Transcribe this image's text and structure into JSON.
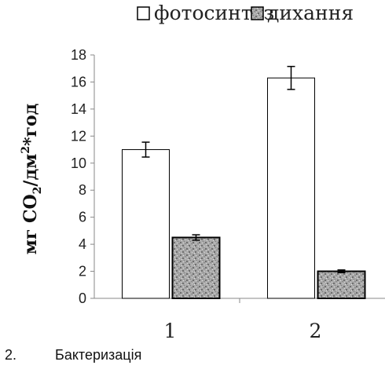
{
  "chart_data": {
    "type": "bar",
    "categories": [
      "1",
      "2"
    ],
    "series": [
      {
        "name": "фотосинтез",
        "values": [
          11.0,
          16.3
        ],
        "errors": [
          0.55,
          0.85
        ],
        "fill": "#ffffff"
      },
      {
        "name": "дихання",
        "values": [
          4.5,
          2.0
        ],
        "errors": [
          0.2,
          0.1
        ],
        "fill": "#a8a8a8"
      }
    ],
    "ylim": [
      0,
      18
    ],
    "yticks": [
      "0",
      "2",
      "4",
      "6",
      "8",
      "10",
      "12",
      "14",
      "16",
      "18"
    ],
    "ylabel": {
      "main": "мг CO",
      "sub": "2",
      "mid": "/дм",
      "sup": "2",
      "tail": "*год"
    },
    "legend_position": "top",
    "grid": false
  },
  "caption": {
    "number": "2.",
    "text": "Бактеризація"
  },
  "colors": {
    "axis": "#888888",
    "bar_stroke": "#000000",
    "pattern_base": "#a8a8a8"
  }
}
